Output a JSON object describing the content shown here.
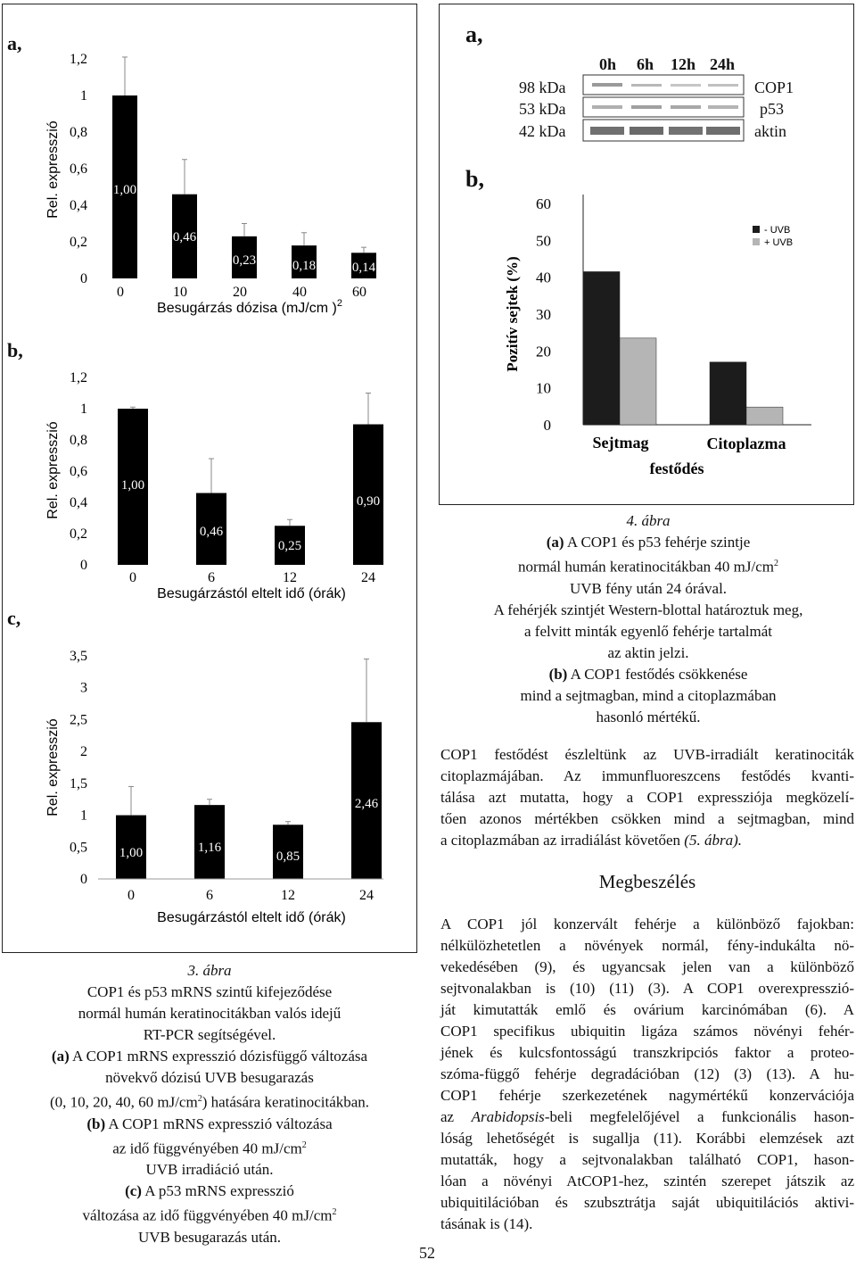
{
  "page_number": "52",
  "figure3": {
    "panel_labels": [
      "a,",
      "b,",
      "c,"
    ],
    "caption": {
      "title": "3. ábra",
      "lines": [
        "COP1 és p53 mRNS szintű kifejeződése",
        "normál humán keratinocitákban valós idejű",
        "RT-PCR segítségével."
      ],
      "a_tag": "(a)",
      "a_lines": [
        " A COP1 mRNS expresszió dózisfüggő változása",
        "növekvő dózisú UVB besugarazás",
        "(0, 10, 20, 40, 60 mJ/cm",
        ") hatására keratinocitákban."
      ],
      "b_tag": "(b)",
      "b_lines": [
        " A COP1 mRNS expresszió változása",
        "az idő függvényében 40 mJ/cm",
        "UVB irradiáció után."
      ],
      "c_tag": "(c)",
      "c_lines": [
        " A p53 mRNS expresszió",
        "változása az idő függvényében 40 mJ/cm",
        "UVB besugarazás után."
      ],
      "sup2": "2"
    }
  },
  "figure4": {
    "panel_labels": [
      "a,",
      "b,"
    ],
    "blot": {
      "time_labels": [
        "0h",
        "6h",
        "12h",
        "24h"
      ],
      "kda_labels": [
        "98 kDa",
        "53 kDa",
        "42 kDa"
      ],
      "protein_labels": [
        "COP1",
        "p53",
        "aktin"
      ]
    },
    "caption": {
      "title": "4. ábra",
      "a_tag": "(a)",
      "a_lines": [
        " A COP1 és p53 fehérje szintje",
        "normál humán keratinocitákban 40 mJ/cm",
        "UVB fény után 24 órával.",
        "A fehérjék szintjét Western-blottal határoztuk meg,",
        "a felvitt minták egyenlő fehérje tartalmát",
        "az aktin jelzi."
      ],
      "b_tag": "(b)",
      "b_lines": [
        " A COP1 festődés csökkenése",
        "mind a sejtmagban, mind a citoplazmában",
        "hasonló mértékű."
      ],
      "sup2": "2"
    }
  },
  "chart_data": [
    {
      "type": "bar",
      "panel": "3a",
      "categories": [
        "0",
        "10",
        "20",
        "40",
        "60"
      ],
      "values": [
        1.0,
        0.46,
        0.23,
        0.18,
        0.14
      ],
      "value_labels": [
        "1,00",
        "0,46",
        "0,23",
        "0,18",
        "0,14"
      ],
      "error_upper": [
        1.21,
        0.65,
        0.3,
        0.25,
        0.17
      ],
      "ylabel": "Rel. expresszió",
      "xlabel": "Besugárzás dózisa (mJ/cm )",
      "xlabel_sup": "2",
      "ylim": [
        0,
        1.2
      ],
      "yticks": [
        "0",
        "0,2",
        "0,4",
        "0,6",
        "0,8",
        "1",
        "1,2"
      ],
      "bar_color": "#000000"
    },
    {
      "type": "bar",
      "panel": "3b",
      "categories": [
        "0",
        "6",
        "12",
        "24"
      ],
      "values": [
        1.0,
        0.46,
        0.25,
        0.9
      ],
      "value_labels": [
        "1,00",
        "0,46",
        "0,25",
        "0,90"
      ],
      "error_upper": [
        1.01,
        0.68,
        0.29,
        1.1
      ],
      "ylabel": "Rel. expresszió",
      "xlabel": "Besugárzástól eltelt idő (órák)",
      "ylim": [
        0,
        1.2
      ],
      "yticks": [
        "0",
        "0,2",
        "0,4",
        "0,6",
        "0,8",
        "1",
        "1,2"
      ],
      "bar_color": "#000000"
    },
    {
      "type": "bar",
      "panel": "3c",
      "categories": [
        "0",
        "6",
        "12",
        "24"
      ],
      "values": [
        1.0,
        1.16,
        0.85,
        2.46
      ],
      "value_labels": [
        "1,00",
        "1,16",
        "0,85",
        "2,46"
      ],
      "error_upper": [
        1.45,
        1.25,
        0.9,
        3.45
      ],
      "ylabel": "Rel. expresszió",
      "xlabel": "Besugárzástól eltelt idő (órák)",
      "ylim": [
        0,
        3.5
      ],
      "yticks": [
        "0",
        "0,5",
        "1",
        "1,5",
        "2",
        "2,5",
        "3",
        "3,5"
      ],
      "bar_color": "#000000"
    },
    {
      "type": "bar",
      "panel": "4b",
      "categories": [
        "Sejtmag",
        "Citoplazma"
      ],
      "series": [
        {
          "name": "- UVB",
          "values": [
            41.5,
            17
          ],
          "color": "#1c1c1c"
        },
        {
          "name": "+ UVB",
          "values": [
            23.5,
            4.8
          ],
          "color": "#b5b5b5"
        }
      ],
      "ylabel": "Pozitív sejtek (%)",
      "xlabel": "festődés",
      "ylim": [
        0,
        60
      ],
      "yticks": [
        "0",
        "10",
        "20",
        "30",
        "40",
        "50",
        "60"
      ],
      "legend": "top-right"
    }
  ],
  "paragraph1": {
    "lines": [
      "COP1 festődést észleltünk az UVB-irradiált keratinociták",
      "citoplazmájában. Az immunfluoreszcens festődés kvanti-",
      "tálása azt mutatta, hogy a COP1 expressziója megközelí-",
      "tően azonos mértékben csökken mind a sejtmagban, mind"
    ],
    "last_line_start": "a citoplazmában az irradiálást követően ",
    "last_line_italic": "(5. ábra).",
    "italic_word": "Arabidopsis"
  },
  "section_heading": "Megbeszélés",
  "paragraph2": {
    "lines": [
      "A COP1 jól konzervált fehérje a különböző fajokban:",
      "nélkülözhetetlen a növények normál, fény-indukálta nö-",
      "vekedésében (9), és ugyancsak jelen van a különböző",
      "sejtvonalakban is (10) (11) (3). A COP1 overexpresszió-",
      "ját kimutatták emlő és ovárium karcinómában (6). A",
      "COP1 specifikus ubiquitin ligáza számos növényi fehér-",
      "jének és kulcsfontosságú transzkripciós faktor a proteo-",
      "szóma-függő fehérje degradációban (12) (3) (13). A hu-",
      "COP1 fehérje szerkezetének nagymértékű konzervációja",
      "",
      "lóság lehetőségét is sugallja (11). Korábbi elemzések azt",
      "mutatták, hogy a sejtvonalakban található COP1, hason-",
      "lóan a növényi AtCOP1-hez, szintén szerepet játszik az",
      "ubiquitilációban és szubsztrátja saját ubiquitilációs aktivi-",
      "tásának is (14)."
    ],
    "line10_pre": "az ",
    "line10_post": "-beli megfelelőjével a funkcionális hason-"
  }
}
